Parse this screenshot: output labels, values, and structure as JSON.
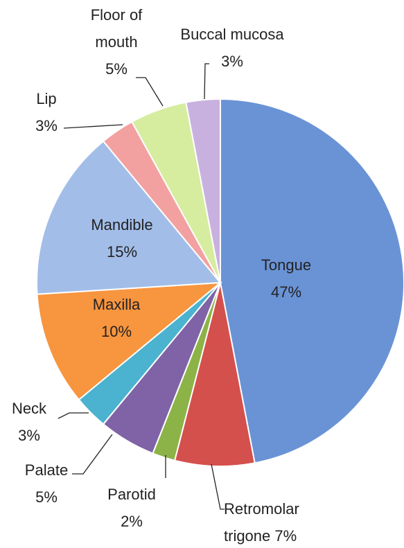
{
  "chart_data": {
    "type": "pie",
    "categories": [
      "Tongue",
      "Retromolar trigone",
      "Parotid",
      "Palate",
      "Neck",
      "Maxilla",
      "Mandible",
      "Lip",
      "Floor of mouth",
      "Buccal mucosa"
    ],
    "values": [
      47,
      7,
      2,
      5,
      3,
      10,
      15,
      3,
      5,
      3
    ],
    "value_labels": [
      "47%",
      "7%",
      "2%",
      "5%",
      "3%",
      "10%",
      "15%",
      "3%",
      "5%",
      "3%"
    ],
    "colors": [
      "#6a93d6",
      "#d4504c",
      "#8cb347",
      "#7f63a6",
      "#4bb2cf",
      "#f8953f",
      "#a2bde8",
      "#f2a1a0",
      "#d6eda0",
      "#c8b1df"
    ]
  }
}
